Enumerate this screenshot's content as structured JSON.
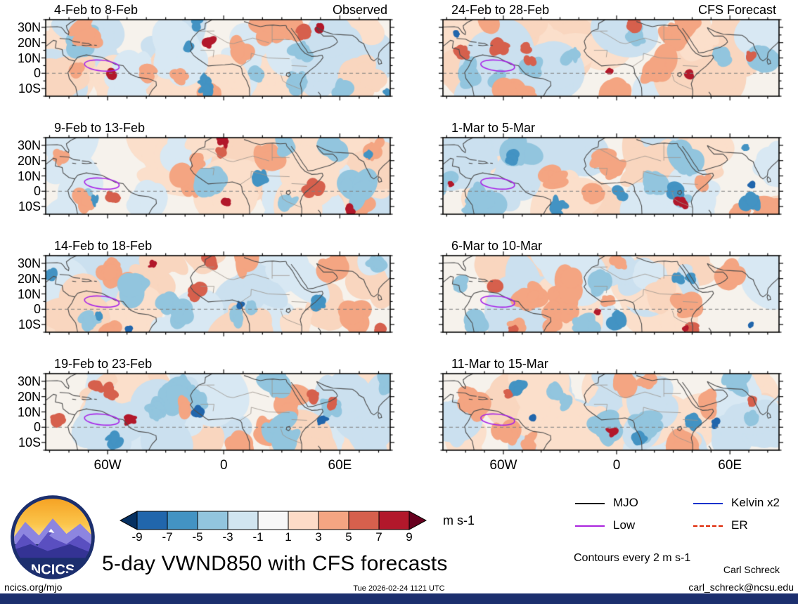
{
  "title": "5-day VWND850 with CFS forecasts",
  "logo": {
    "text": "NCICS"
  },
  "columns": [
    {
      "header": "Observed",
      "panels": [
        {
          "label": "4-Feb to 8-Feb"
        },
        {
          "label": "9-Feb to 13-Feb"
        },
        {
          "label": "14-Feb to 18-Feb"
        },
        {
          "label": "19-Feb to 23-Feb"
        }
      ]
    },
    {
      "header": "CFS Forecast",
      "panels": [
        {
          "label": "24-Feb to 28-Feb"
        },
        {
          "label": "1-Mar to 5-Mar"
        },
        {
          "label": "6-Mar to 10-Mar"
        },
        {
          "label": "11-Mar to 15-Mar"
        }
      ]
    }
  ],
  "axes": {
    "y_ticks": [
      "30N",
      "20N",
      "10N",
      "0",
      "10S"
    ],
    "x_ticks": [
      "60W",
      "0",
      "60E"
    ]
  },
  "colorbar": {
    "tick_labels": [
      "-9",
      "-7",
      "-5",
      "-3",
      "-1",
      "1",
      "3",
      "5",
      "7",
      "9"
    ],
    "units": "m s-1",
    "colors": {
      "below": "#053061",
      "boxes": [
        "#2166ac",
        "#4393c3",
        "#92c5de",
        "#d1e5f0",
        "#f7f7f7",
        "#fddbc7",
        "#f4a582",
        "#d6604d",
        "#b2182b"
      ],
      "above": "#67001f"
    }
  },
  "legend": {
    "items": [
      {
        "label": "MJO",
        "color": "#000000",
        "style": "solid"
      },
      {
        "label": "Low",
        "color": "#aa22dd",
        "style": "solid"
      },
      {
        "label": "Kelvin x2",
        "color": "#0033cc",
        "style": "solid"
      },
      {
        "label": "ER",
        "color": "#dd2200",
        "style": "dashed"
      }
    ],
    "note": "Contours every 2 m s-1"
  },
  "footer": {
    "site": "ncics.org/mjo",
    "timestamp": "Tue 2026-02-24 1121 UTC",
    "author": "Carl Schreck",
    "email": "carl_schreck@ncsu.edu"
  },
  "chart_data": {
    "type": "heatmap",
    "title": "5-day VWND850 with CFS forecasts",
    "variable": "850-hPa meridional wind (VWND850) anomaly, filled contour maps over Atlantic / Africa / Indian Ocean sector",
    "units": "m s-1",
    "contour_interval_note": "Contours every 2 m s-1",
    "shading_levels": [
      -9,
      -7,
      -5,
      -3,
      -1,
      1,
      3,
      5,
      7,
      9
    ],
    "colormap": "blue = negative anomaly, red = positive anomaly (RdBu reversed), with below/above extreme triangles",
    "lat_ticks": [
      "30N",
      "20N",
      "10N",
      "0",
      "10S"
    ],
    "lon_ticks": [
      "60W",
      "0",
      "60E"
    ],
    "panels": [
      {
        "period": "4-Feb to 8-Feb",
        "kind": "Observed"
      },
      {
        "period": "9-Feb to 13-Feb",
        "kind": "Observed"
      },
      {
        "period": "14-Feb to 18-Feb",
        "kind": "Observed"
      },
      {
        "period": "19-Feb to 23-Feb",
        "kind": "Observed"
      },
      {
        "period": "24-Feb to 28-Feb",
        "kind": "CFS Forecast"
      },
      {
        "period": "1-Mar to 5-Mar",
        "kind": "CFS Forecast"
      },
      {
        "period": "6-Mar to 10-Mar",
        "kind": "CFS Forecast"
      },
      {
        "period": "11-Mar to 15-Mar",
        "kind": "CFS Forecast"
      }
    ],
    "wave_overlays": [
      "MJO",
      "Kelvin x2",
      "Low",
      "ER"
    ],
    "legend_position": "bottom-right"
  }
}
